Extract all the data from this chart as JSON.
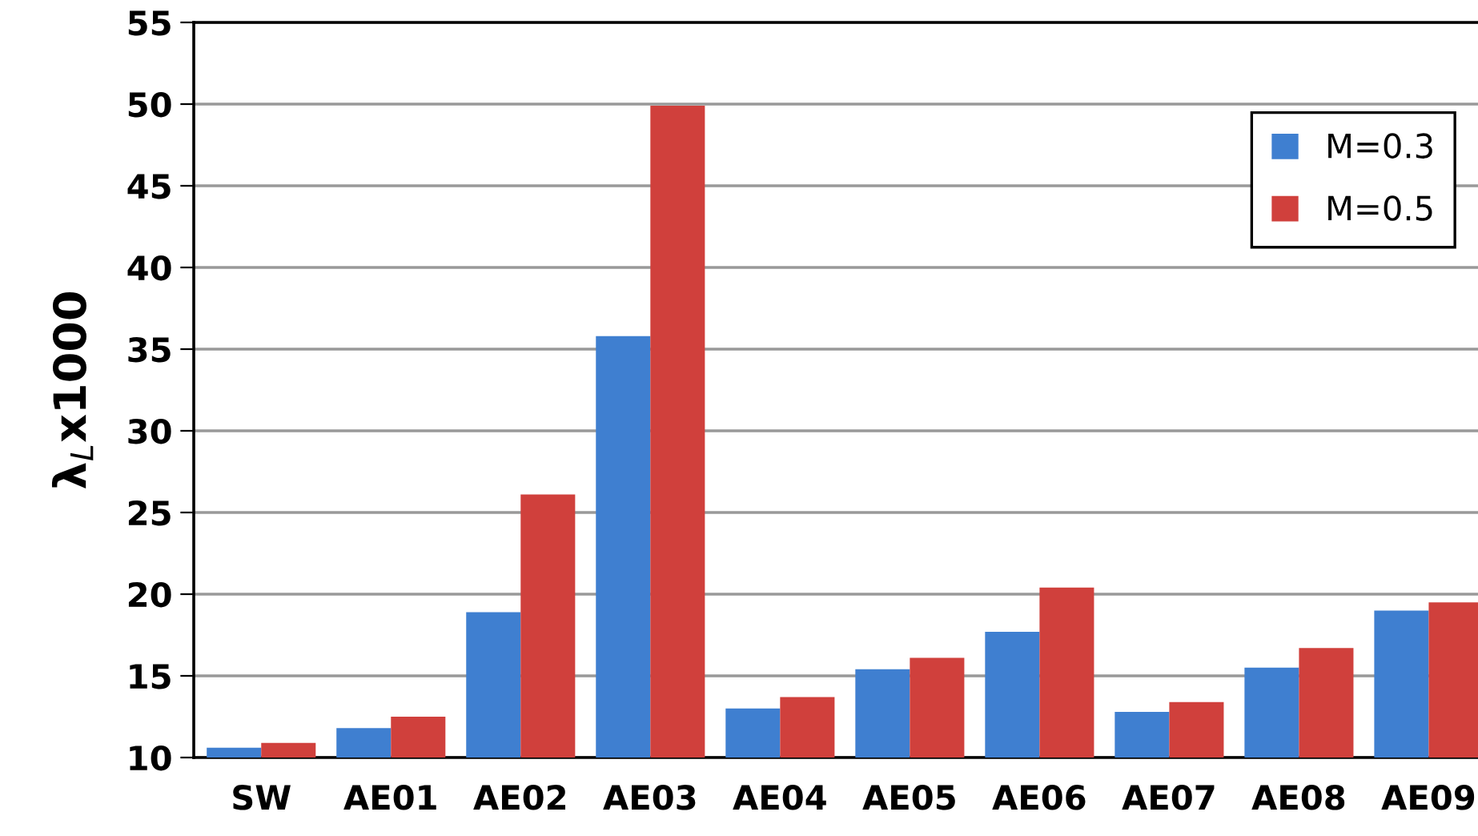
{
  "chart_data": {
    "type": "bar",
    "ylabel": "λ$_{L}$x1000",
    "categories": [
      "SW",
      "AE01",
      "AE02",
      "AE03",
      "AE04",
      "AE05",
      "AE06",
      "AE07",
      "AE08",
      "AE09"
    ],
    "series": [
      {
        "name": "M=0.3",
        "color": "#3f7fd0",
        "values": [
          10.6,
          11.8,
          18.9,
          35.8,
          13.0,
          15.4,
          17.7,
          12.8,
          15.5,
          19.0
        ]
      },
      {
        "name": "M=0.5",
        "color": "#d0403c",
        "values": [
          10.9,
          12.5,
          26.1,
          49.9,
          13.7,
          16.1,
          20.4,
          13.4,
          16.7,
          19.5
        ]
      }
    ],
    "ylim": [
      10,
      55
    ],
    "yticks": [
      10,
      15,
      20,
      25,
      30,
      35,
      40,
      45,
      50,
      55
    ],
    "grid": "y",
    "legend": "top right"
  }
}
